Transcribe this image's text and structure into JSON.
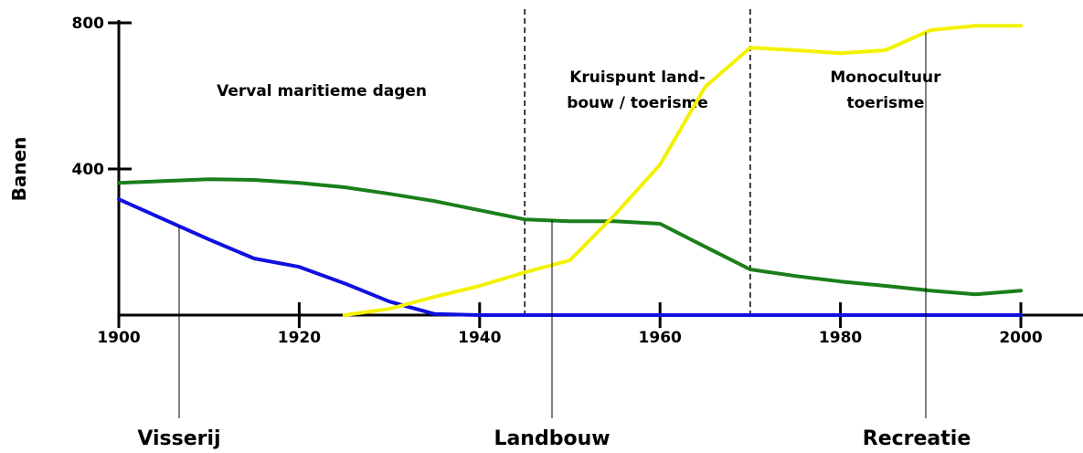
{
  "chart_data": {
    "type": "line",
    "y_label": "Banen",
    "x": [
      1900,
      1905,
      1910,
      1915,
      1920,
      1925,
      1930,
      1935,
      1940,
      1945,
      1950,
      1955,
      1960,
      1965,
      1970,
      1975,
      1980,
      1985,
      1990,
      1995,
      2000
    ],
    "series": [
      {
        "name": "Visserij",
        "color": "#1010e0",
        "values": [
          317,
          262,
          207,
          155,
          132,
          87,
          37,
          3,
          0,
          0,
          0,
          0,
          0,
          0,
          0,
          0,
          0,
          0,
          0,
          0,
          0
        ]
      },
      {
        "name": "Landbouw",
        "color": "#1a7f1a",
        "values": [
          362,
          367,
          372,
          370,
          362,
          350,
          332,
          312,
          287,
          262,
          257,
          257,
          250,
          187,
          125,
          107,
          92,
          80,
          67,
          57,
          67
        ]
      },
      {
        "name": "Recreatie",
        "color": "#f2f200",
        "values": [
          null,
          null,
          null,
          null,
          null,
          0,
          17,
          50,
          80,
          117,
          150,
          275,
          412,
          625,
          732,
          725,
          717,
          725,
          780,
          792,
          792
        ]
      }
    ],
    "xlim": [
      1900,
      2000
    ],
    "ylim": [
      0,
      800
    ],
    "xticks": [
      1900,
      1920,
      1940,
      1960,
      1980,
      2000
    ],
    "yticks": [
      400,
      800
    ],
    "period_lines": [
      1945,
      1970
    ],
    "periods": [
      {
        "lines": [
          "Verval maritieme dagen"
        ]
      },
      {
        "lines": [
          "Kruispunt land-",
          "bouw / toerisme"
        ]
      },
      {
        "lines": [
          "Monocultuur",
          "toerisme"
        ]
      }
    ]
  }
}
